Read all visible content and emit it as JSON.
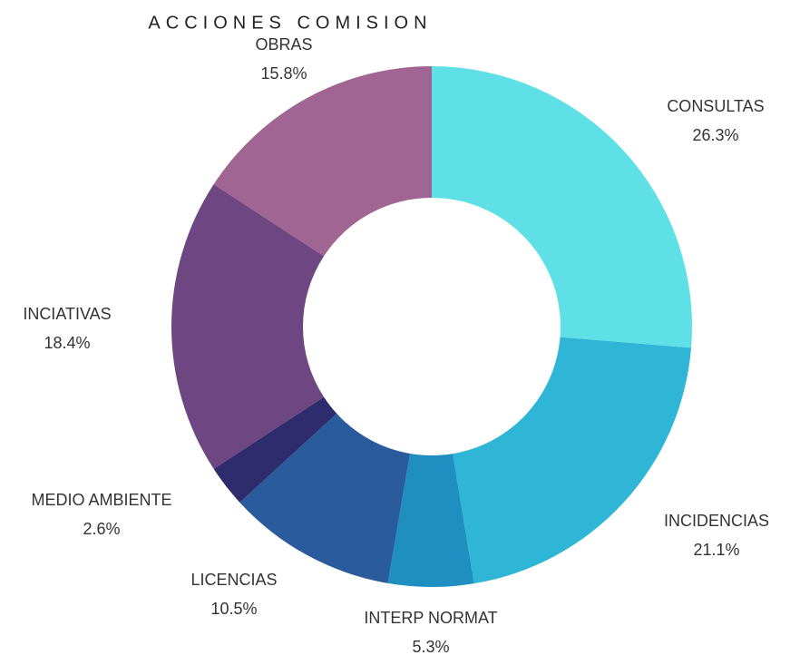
{
  "chart_data": {
    "type": "pie",
    "title": "ACCIONES COMISION",
    "categories": [
      "CONSULTAS",
      "INCIDENCIAS",
      "INTERP NORMAT",
      "LICENCIAS",
      "MEDIO AMBIENTE",
      "INCIATIVAS",
      "OBRAS"
    ],
    "values": [
      26.3,
      21.1,
      5.3,
      10.5,
      2.6,
      18.4,
      15.8
    ],
    "value_labels": [
      "26.3%",
      "21.1%",
      "5.3%",
      "10.5%",
      "2.6%",
      "18.4%",
      "15.8%"
    ],
    "colors": [
      "#5ee0e6",
      "#2fb5d6",
      "#1f8ec0",
      "#2a5b9c",
      "#2e2c6c",
      "#6e4681",
      "#a06592"
    ]
  }
}
